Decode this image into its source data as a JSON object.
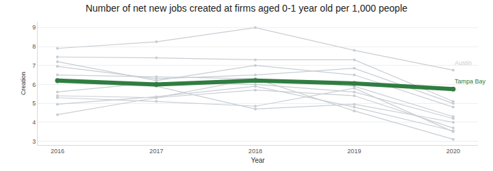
{
  "chart_data": {
    "type": "line",
    "title": "Number of net new jobs created at firms aged 0-1 year old per 1,000 people",
    "x_label": "Year",
    "y_label": "Creation",
    "x": [
      2016,
      2017,
      2018,
      2019,
      2020
    ],
    "xlim": [
      2015.8,
      2020.25
    ],
    "xticks": [
      2016,
      2017,
      2018,
      2019,
      2020
    ],
    "ylim": [
      2.8,
      9.3
    ],
    "yticks": [
      3,
      4,
      5,
      6,
      7,
      8,
      9
    ],
    "grid": true,
    "color": "#c8ced3",
    "marker": "circle",
    "series": [
      {
        "name": "Austin",
        "values": [
          7.9,
          8.25,
          9.0,
          7.8,
          6.75
        ]
      },
      {
        "values": [
          7.45,
          7.4,
          7.3,
          7.3,
          5.1
        ]
      },
      {
        "values": [
          7.2,
          6.2,
          7.0,
          6.5,
          4.8
        ]
      },
      {
        "values": [
          6.95,
          6.3,
          6.5,
          6.85,
          5.0
        ]
      },
      {
        "values": [
          6.5,
          6.4,
          6.3,
          5.9,
          4.3
        ]
      },
      {
        "values": [
          6.1,
          5.9,
          4.7,
          4.95,
          4.0
        ]
      },
      {
        "values": [
          5.6,
          6.1,
          6.0,
          5.6,
          4.2
        ]
      },
      {
        "values": [
          5.4,
          5.3,
          5.7,
          5.4,
          3.7
        ]
      },
      {
        "values": [
          5.3,
          5.1,
          4.85,
          5.8,
          3.5
        ]
      },
      {
        "values": [
          4.95,
          5.35,
          5.9,
          4.8,
          3.55
        ]
      },
      {
        "values": [
          4.4,
          5.3,
          6.3,
          4.6,
          3.1
        ]
      },
      {
        "name": "Tampa Bay",
        "color": "#2f7d40",
        "values": [
          6.2,
          6.0,
          6.2,
          6.05,
          5.75
        ]
      }
    ]
  }
}
